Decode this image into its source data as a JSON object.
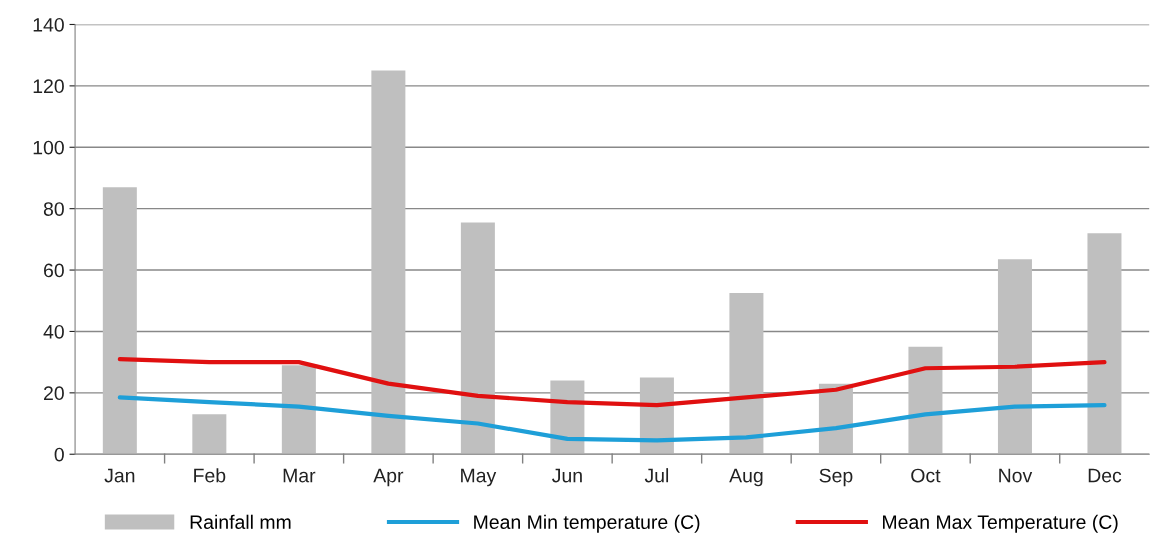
{
  "chart_data": {
    "type": "bar",
    "categories": [
      "Jan",
      "Feb",
      "Mar",
      "Apr",
      "May",
      "Jun",
      "Jul",
      "Aug",
      "Sep",
      "Oct",
      "Nov",
      "Dec"
    ],
    "series": [
      {
        "name": "Rainfall mm",
        "color": "#bfbfbf",
        "values": [
          87,
          13,
          29,
          125,
          75.5,
          24,
          25,
          52.5,
          23,
          35,
          63.5,
          72
        ]
      },
      {
        "name": "Mean Min temperature (C)",
        "color": "#1e9fd8",
        "type": "line",
        "values": [
          18.5,
          17,
          15.5,
          12.5,
          10,
          5,
          4.5,
          5.5,
          8.5,
          13,
          15.5,
          16
        ]
      },
      {
        "name": "Mean Max Temperature (C)",
        "color": "#e01010",
        "type": "line",
        "values": [
          31,
          30,
          30,
          23,
          19,
          17,
          16,
          18.5,
          21,
          28,
          28.5,
          30
        ]
      }
    ],
    "ylim": [
      0,
      140
    ],
    "yticks": [
      0,
      20,
      40,
      60,
      80,
      100,
      120,
      140
    ],
    "grid": "y",
    "legend": "bottom",
    "marker": "none",
    "line_style": "solid"
  }
}
